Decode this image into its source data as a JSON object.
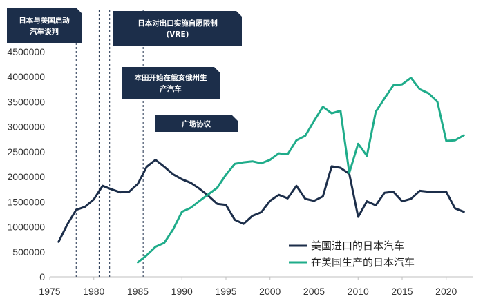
{
  "chart_data": {
    "type": "line",
    "title": "",
    "xlabel": "",
    "ylabel": "",
    "xlim": [
      1975,
      2023
    ],
    "ylim": [
      0,
      4500000
    ],
    "x_ticks": [
      1975,
      1980,
      1985,
      1990,
      1995,
      2000,
      2005,
      2010,
      2015,
      2020
    ],
    "y_ticks": [
      0,
      500000,
      1000000,
      1500000,
      2000000,
      2500000,
      3000000,
      3500000,
      4000000,
      4500000
    ],
    "grid": false,
    "legend_position": "bottom-right",
    "series": [
      {
        "name": "美国进口的日本汽车",
        "color": "#1c2e4a",
        "x": [
          1976,
          1977,
          1978,
          1979,
          1980,
          1981,
          1982,
          1983,
          1984,
          1985,
          1986,
          1987,
          1988,
          1989,
          1990,
          1991,
          1992,
          1993,
          1994,
          1995,
          1996,
          1997,
          1998,
          1999,
          2000,
          2001,
          2002,
          2003,
          2004,
          2005,
          2006,
          2007,
          2008,
          2009,
          2010,
          2011,
          2012,
          2013,
          2014,
          2015,
          2016,
          2017,
          2018,
          2019,
          2020,
          2021,
          2022
        ],
        "values": [
          700000,
          1050000,
          1340000,
          1400000,
          1550000,
          1820000,
          1750000,
          1690000,
          1700000,
          1860000,
          2200000,
          2340000,
          2200000,
          2050000,
          1950000,
          1880000,
          1760000,
          1620000,
          1460000,
          1440000,
          1140000,
          1060000,
          1220000,
          1290000,
          1520000,
          1640000,
          1570000,
          1820000,
          1560000,
          1520000,
          1610000,
          2210000,
          2180000,
          2060000,
          1200000,
          1510000,
          1430000,
          1680000,
          1700000,
          1510000,
          1560000,
          1720000,
          1700000,
          1700000,
          1700000,
          1370000,
          1300000
        ]
      },
      {
        "name": "在美国生产的日本汽车",
        "color": "#1fac8a",
        "x": [
          1985,
          1986,
          1987,
          1988,
          1989,
          1990,
          1991,
          1992,
          1993,
          1994,
          1995,
          1996,
          1997,
          1998,
          1999,
          2000,
          2001,
          2002,
          2003,
          2004,
          2005,
          2006,
          2007,
          2008,
          2009,
          2010,
          2011,
          2012,
          2013,
          2014,
          2015,
          2016,
          2017,
          2018,
          2019,
          2020,
          2021,
          2022
        ],
        "values": [
          290000,
          430000,
          600000,
          680000,
          950000,
          1300000,
          1380000,
          1520000,
          1650000,
          1780000,
          2040000,
          2260000,
          2290000,
          2310000,
          2270000,
          2340000,
          2470000,
          2450000,
          2730000,
          2820000,
          3120000,
          3400000,
          3270000,
          3320000,
          2080000,
          2660000,
          2420000,
          3300000,
          3570000,
          3830000,
          3850000,
          3980000,
          3750000,
          3670000,
          3500000,
          2720000,
          2730000,
          2830000
        ]
      }
    ],
    "events": [
      {
        "label_lines": [
          "日本与美国启动",
          "汽车谈判"
        ],
        "x": 1978
      },
      {
        "label_lines": [
          "日本对出口实施自愿限制",
          "(VRE)"
        ],
        "x": 1980.6
      },
      {
        "label_lines": [
          "本田开始在俄亥俄州生",
          "产汽车"
        ],
        "x": 1981.8
      },
      {
        "label_lines": [
          "广场协议"
        ],
        "x": 1985.6
      }
    ]
  },
  "colors": {
    "annotation_bg": "#1c2e4a",
    "background": "#ffffff",
    "axis": "#bfbfbf",
    "text": "#333333"
  }
}
